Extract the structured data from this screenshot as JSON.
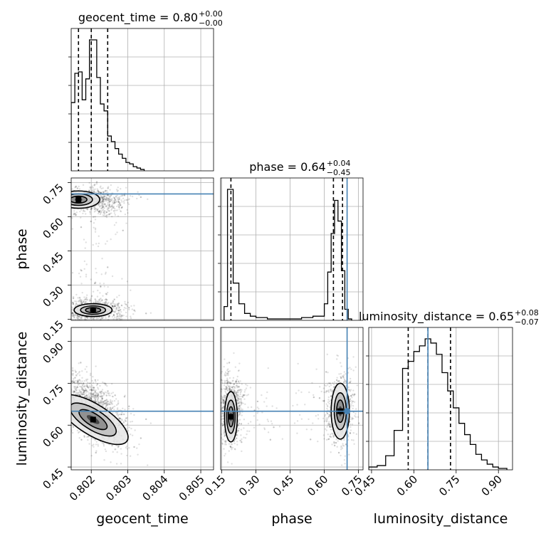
{
  "chart_data": {
    "type": "corner",
    "parameters": [
      {
        "key": "geocent_time",
        "title_text": "geocent_time = 0.80",
        "title_sup": "+0.00",
        "title_sub": "−0.00",
        "axis_label": "geocent_time",
        "range": [
          0.80145,
          0.80535
        ],
        "ticks": [
          0.802,
          0.803,
          0.804,
          0.805
        ],
        "tick_labels": [
          "0.802",
          "0.803",
          "0.804",
          "0.805"
        ],
        "quantiles": [
          0.80165,
          0.802,
          0.80245
        ],
        "hist_edges": [
          0.80145,
          0.80155,
          0.80165,
          0.80175,
          0.80185,
          0.80195,
          0.80205,
          0.80215,
          0.80225,
          0.80235,
          0.80245,
          0.80255,
          0.80265,
          0.80275,
          0.80285,
          0.80295,
          0.80305,
          0.80315,
          0.80325,
          0.80335,
          0.80345
        ],
        "hist_counts": [
          0.49,
          0.7,
          0.71,
          0.51,
          0.66,
          0.94,
          0.94,
          0.67,
          0.48,
          0.43,
          0.25,
          0.21,
          0.16,
          0.12,
          0.09,
          0.06,
          0.05,
          0.03,
          0.02,
          0.01
        ]
      },
      {
        "key": "phase",
        "title_text": "phase = 0.64",
        "title_sup": "+0.04",
        "title_sub": "−0.45",
        "axis_label": "phase",
        "range": [
          0.145,
          0.77
        ],
        "ticks": [
          0.15,
          0.3,
          0.45,
          0.6,
          0.75
        ],
        "tick_labels": [
          "0.15",
          "0.30",
          "0.45",
          "0.60",
          "0.75"
        ],
        "quantiles": [
          0.19,
          0.64,
          0.68
        ],
        "truth": 0.7,
        "hist_edges": [
          0.16,
          0.175,
          0.2,
          0.225,
          0.25,
          0.275,
          0.3,
          0.35,
          0.4,
          0.45,
          0.5,
          0.55,
          0.6,
          0.615,
          0.63,
          0.645,
          0.66,
          0.675,
          0.69,
          0.705,
          0.72
        ],
        "hist_counts": [
          0.1,
          0.95,
          0.27,
          0.12,
          0.05,
          0.03,
          0.02,
          0.01,
          0.01,
          0.01,
          0.02,
          0.03,
          0.12,
          0.35,
          0.63,
          0.87,
          0.72,
          0.36,
          0.08,
          0.01
        ]
      },
      {
        "key": "luminosity_distance",
        "title_text": "luminosity_distance = 0.65",
        "title_sup": "+0.08",
        "title_sub": "−0.07",
        "axis_label": "luminosity_distance",
        "range": [
          0.44,
          0.95
        ],
        "ticks": [
          0.45,
          0.6,
          0.75,
          0.9
        ],
        "tick_labels": [
          "0.45",
          "0.60",
          "0.75",
          "0.90"
        ],
        "quantiles": [
          0.58,
          0.65,
          0.73
        ],
        "truth": 0.65,
        "hist_edges": [
          0.44,
          0.47,
          0.5,
          0.53,
          0.56,
          0.58,
          0.6,
          0.62,
          0.64,
          0.66,
          0.68,
          0.7,
          0.72,
          0.74,
          0.76,
          0.78,
          0.8,
          0.82,
          0.84,
          0.86,
          0.88,
          0.9,
          0.93
        ],
        "hist_counts": [
          0.02,
          0.03,
          0.1,
          0.28,
          0.72,
          0.77,
          0.84,
          0.88,
          0.93,
          0.9,
          0.82,
          0.69,
          0.56,
          0.44,
          0.33,
          0.25,
          0.18,
          0.11,
          0.07,
          0.04,
          0.02,
          0.01
        ]
      }
    ],
    "truth_color": "#4682b4",
    "grid": true
  }
}
